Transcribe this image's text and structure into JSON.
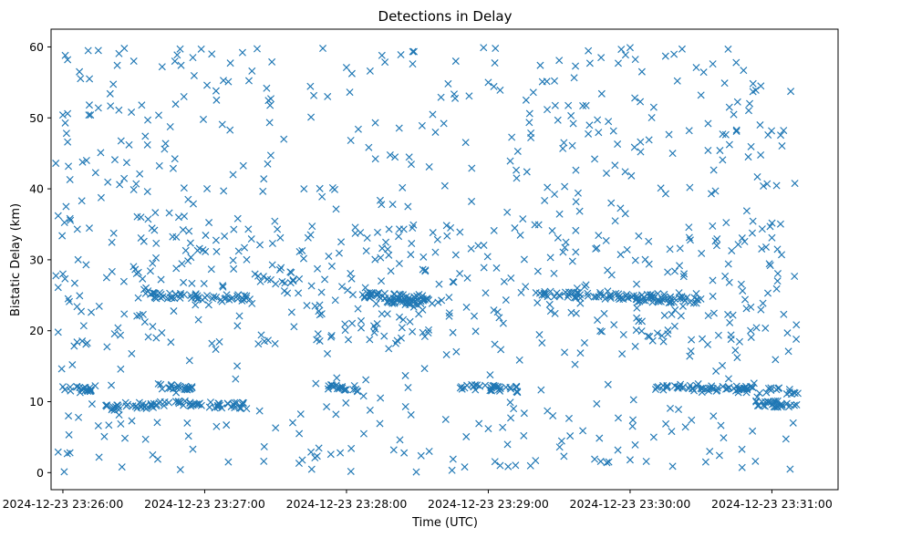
{
  "chart_data": {
    "type": "scatter",
    "title": "Detections in Delay",
    "xlabel": "Time (UTC)",
    "ylabel": "Bistatic Delay (km)",
    "xlim_seconds_after_23_25_00": [
      55,
      388
    ],
    "ylim": [
      -2.4,
      62.5
    ],
    "x_ticks": [
      {
        "t": 60,
        "label": "2024-12-23 23:26:00"
      },
      {
        "t": 120,
        "label": "2024-12-23 23:27:00"
      },
      {
        "t": 180,
        "label": "2024-12-23 23:28:00"
      },
      {
        "t": 240,
        "label": "2024-12-23 23:29:00"
      },
      {
        "t": 300,
        "label": "2024-12-23 23:30:00"
      },
      {
        "t": 360,
        "label": "2024-12-23 23:31:00"
      }
    ],
    "y_ticks": [
      {
        "v": 0,
        "label": "0"
      },
      {
        "v": 10,
        "label": "10"
      },
      {
        "v": 20,
        "label": "20"
      },
      {
        "v": 30,
        "label": "30"
      },
      {
        "v": 40,
        "label": "40"
      },
      {
        "v": 50,
        "label": "50"
      },
      {
        "v": 60,
        "label": "60"
      }
    ],
    "marker": "x",
    "color": "#1f77b4",
    "series": [
      {
        "name": "detections",
        "x_start": 57,
        "x_end": 371,
        "note": "approximately 1100 scattered detections between 23:25:57 and 23:31:11 UTC, delay 0-60 km",
        "clusters": [
          {
            "t_from": 60,
            "t_to": 72,
            "delay": 11.8
          },
          {
            "t_from": 100,
            "t_to": 115,
            "delay": 12.2
          },
          {
            "t_from": 78,
            "t_to": 84,
            "delay": 9.2
          },
          {
            "t_from": 86,
            "t_to": 100,
            "delay": 9.5
          },
          {
            "t_from": 100,
            "t_to": 138,
            "delay": 9.8
          },
          {
            "t_from": 172,
            "t_to": 185,
            "delay": 12.0
          },
          {
            "t_from": 228,
            "t_to": 253,
            "delay": 12.0
          },
          {
            "t_from": 310,
            "t_to": 371,
            "delay": 12.1
          },
          {
            "t_from": 350,
            "t_to": 371,
            "delay": 9.8
          },
          {
            "t_from": 97,
            "t_to": 140,
            "delay": 25.0
          },
          {
            "t_from": 185,
            "t_to": 215,
            "delay": 25.0
          },
          {
            "t_from": 195,
            "t_to": 220,
            "delay": 24.2
          },
          {
            "t_from": 260,
            "t_to": 312,
            "delay": 25.2
          },
          {
            "t_from": 300,
            "t_to": 330,
            "delay": 24.5
          }
        ],
        "sample_points": [
          [
            57,
            43.6
          ],
          [
            58,
            36.2
          ],
          [
            58,
            26.1
          ],
          [
            58,
            19.8
          ],
          [
            58,
            2.9
          ],
          [
            60,
            28.0
          ],
          [
            60,
            50.4
          ],
          [
            60,
            12.1
          ],
          [
            61,
            58.8
          ],
          [
            62,
            46.6
          ],
          [
            62,
            58.2
          ],
          [
            62,
            50.6
          ],
          [
            63,
            35.8
          ],
          [
            63,
            41.3
          ],
          [
            63,
            2.8
          ],
          [
            64,
            15.2
          ],
          [
            65,
            26.7
          ],
          [
            66,
            23.4
          ],
          [
            66,
            18.4
          ],
          [
            67,
            56.5
          ],
          [
            68,
            38.3
          ],
          [
            70,
            44.0
          ],
          [
            71,
            50.4
          ],
          [
            72,
            22.6
          ],
          [
            75,
            59.5
          ],
          [
            75,
            51.4
          ],
          [
            76,
            45.1
          ],
          [
            80,
            53.4
          ],
          [
            82,
            44.1
          ],
          [
            83,
            57.4
          ],
          [
            84,
            40.6
          ],
          [
            86,
            59.8
          ],
          [
            87,
            43.7
          ],
          [
            88,
            46.2
          ],
          [
            89,
            50.8
          ],
          [
            90,
            58.0
          ],
          [
            91,
            40.7
          ],
          [
            93,
            36.0
          ],
          [
            96,
            25.6
          ],
          [
            98,
            20.6
          ],
          [
            102,
            57.2
          ],
          [
            103,
            45.6
          ],
          [
            105,
            36.6
          ],
          [
            108,
            33.2
          ],
          [
            110,
            57.4
          ],
          [
            112,
            31.3
          ],
          [
            113,
            38.5
          ],
          [
            115,
            58.5
          ],
          [
            117,
            31.3
          ],
          [
            121,
            54.6
          ],
          [
            123,
            59.0
          ],
          [
            125,
            52.5
          ],
          [
            128,
            39.7
          ],
          [
            130,
            55.1
          ],
          [
            132,
            42.0
          ],
          [
            134,
            35.8
          ],
          [
            136,
            59.2
          ],
          [
            140,
            56.6
          ],
          [
            145,
            41.4
          ],
          [
            148,
            52.7
          ],
          [
            150,
            26.6
          ],
          [
            152,
            33.1
          ],
          [
            155,
            25.3
          ],
          [
            160,
            27.3
          ],
          [
            162,
            40.0
          ],
          [
            165,
            50.1
          ],
          [
            170,
            59.8
          ],
          [
            172,
            53.0
          ],
          [
            175,
            39.9
          ],
          [
            180,
            57.1
          ],
          [
            185,
            48.4
          ],
          [
            190,
            56.6
          ],
          [
            195,
            58.8
          ],
          [
            198,
            34.3
          ],
          [
            203,
            58.9
          ],
          [
            206,
            37.5
          ],
          [
            208,
            57.6
          ],
          [
            212,
            48.9
          ],
          [
            215,
            43.1
          ],
          [
            220,
            52.9
          ],
          [
            223,
            54.8
          ],
          [
            225,
            26.9
          ],
          [
            228,
            33.9
          ],
          [
            233,
            42.9
          ],
          [
            238,
            59.9
          ],
          [
            240,
            55.0
          ],
          [
            243,
            59.8
          ],
          [
            245,
            53.9
          ],
          [
            248,
            36.7
          ],
          [
            252,
            41.5
          ],
          [
            256,
            52.5
          ],
          [
            258,
            47.2
          ],
          [
            262,
            57.4
          ],
          [
            265,
            40.2
          ],
          [
            268,
            55.2
          ],
          [
            270,
            58.1
          ],
          [
            272,
            46.5
          ],
          [
            275,
            50.3
          ],
          [
            278,
            39.4
          ],
          [
            280,
            51.7
          ],
          [
            283,
            57.7
          ],
          [
            285,
            44.2
          ],
          [
            288,
            53.4
          ],
          [
            290,
            42.2
          ],
          [
            292,
            38.0
          ],
          [
            295,
            57.7
          ],
          [
            298,
            36.5
          ],
          [
            300,
            59.9
          ],
          [
            302,
            52.8
          ],
          [
            305,
            56.5
          ],
          [
            308,
            46.9
          ],
          [
            310,
            51.5
          ],
          [
            313,
            40.1
          ],
          [
            315,
            58.7
          ],
          [
            318,
            45.0
          ],
          [
            320,
            55.2
          ],
          [
            322,
            59.7
          ],
          [
            325,
            48.2
          ],
          [
            328,
            57.1
          ],
          [
            330,
            53.2
          ],
          [
            333,
            49.2
          ],
          [
            335,
            57.6
          ],
          [
            338,
            45.4
          ],
          [
            340,
            54.9
          ],
          [
            342,
            51.5
          ],
          [
            345,
            48.1
          ],
          [
            348,
            56.7
          ],
          [
            350,
            44.5
          ],
          [
            352,
            53.7
          ],
          [
            355,
            49.0
          ],
          [
            358,
            40.7
          ],
          [
            360,
            33.1
          ],
          [
            362,
            25.9
          ],
          [
            365,
            22.3
          ],
          [
            367,
            17.1
          ],
          [
            369,
            7.0
          ],
          [
            85,
            0.8
          ],
          [
            98,
            2.5
          ],
          [
            130,
            1.5
          ],
          [
            145,
            1.6
          ],
          [
            165,
            2.9
          ],
          [
            182,
            3.4
          ],
          [
            200,
            3.2
          ],
          [
            215,
            3.0
          ],
          [
            230,
            0.8
          ],
          [
            245,
            1.0
          ],
          [
            260,
            1.7
          ],
          [
            272,
            2.3
          ],
          [
            285,
            1.9
          ],
          [
            300,
            1.8
          ],
          [
            318,
            0.9
          ],
          [
            332,
            1.5
          ],
          [
            75,
            6.6
          ],
          [
            95,
            4.7
          ],
          [
            115,
            3.3
          ],
          [
            125,
            6.5
          ],
          [
            150,
            6.3
          ],
          [
            160,
            5.5
          ],
          [
            190,
            8.8
          ],
          [
            205,
            9.3
          ],
          [
            222,
            7.5
          ],
          [
            240,
            6.2
          ],
          [
            255,
            5.2
          ],
          [
            265,
            8.7
          ],
          [
            280,
            5.9
          ],
          [
            295,
            7.7
          ],
          [
            310,
            5.0
          ],
          [
            326,
            7.4
          ]
        ]
      }
    ]
  }
}
